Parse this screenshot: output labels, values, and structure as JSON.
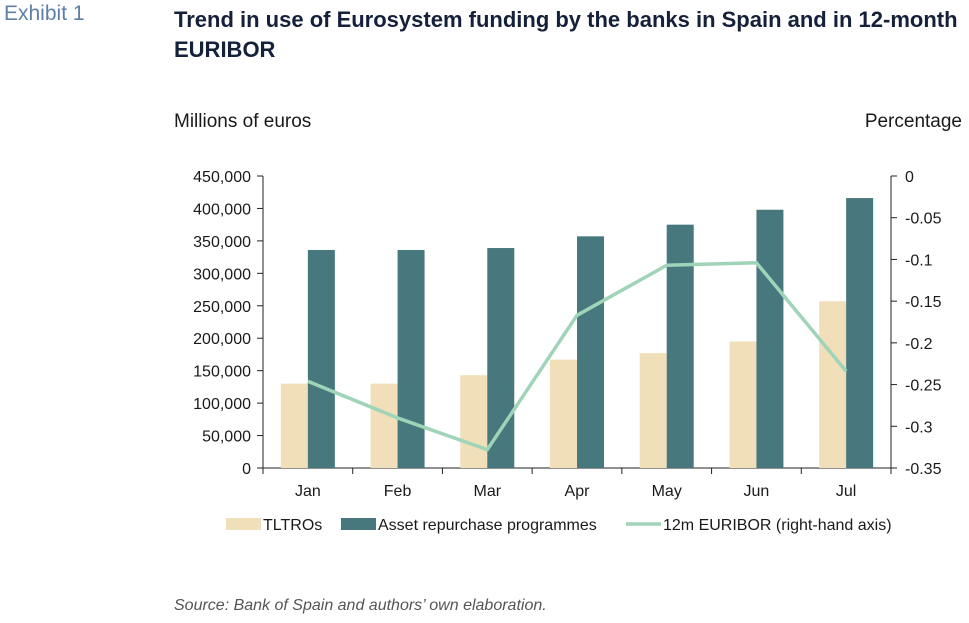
{
  "exhibit_label": "Exhibit 1",
  "chart_data": {
    "type": "bar",
    "title": "Trend in use of Eurosystem funding by the banks in Spain and in 12-month EURIBOR",
    "ylabel": "Millions of euros",
    "y2label": "Percentage",
    "categories": [
      "Jan",
      "Feb",
      "Mar",
      "Apr",
      "May",
      "Jun",
      "Jul"
    ],
    "ylim": [
      0,
      450000
    ],
    "y2lim": [
      -0.35,
      0
    ],
    "yticks": [
      "450,000",
      "400,000",
      "350,000",
      "300,000",
      "250,000",
      "200,000",
      "150,000",
      "100,000",
      "50,000",
      "0"
    ],
    "y2ticks": [
      "0",
      "-0.05",
      "-0.1",
      "-0.15",
      "-0.2",
      "-0.25",
      "-0.3",
      "-0.35"
    ],
    "series": [
      {
        "name": "TLTROs",
        "kind": "bar",
        "axis": "left",
        "color": "#f0dfb8",
        "values": [
          130000,
          130000,
          143000,
          167000,
          177000,
          195000,
          257000
        ]
      },
      {
        "name": "Asset repurchase programmes",
        "kind": "bar",
        "axis": "left",
        "color": "#47787d",
        "values": [
          336000,
          336000,
          339000,
          357000,
          375000,
          398000,
          416000
        ]
      },
      {
        "name": "12m EURIBOR (right-hand axis)",
        "kind": "line",
        "axis": "right",
        "color": "#9fd4b9",
        "values": [
          -0.246,
          -0.29,
          -0.328,
          -0.167,
          -0.107,
          -0.104,
          -0.234
        ]
      }
    ],
    "legend_position": "bottom",
    "grid": false
  },
  "source": "Source: Bank of Spain and authors’ own elaboration."
}
